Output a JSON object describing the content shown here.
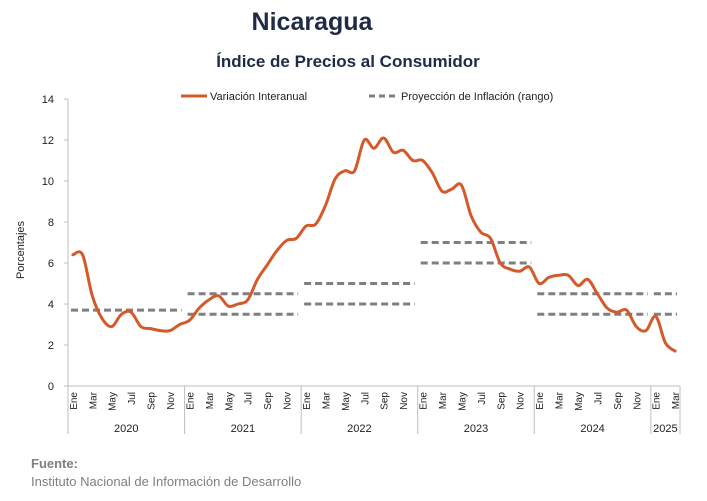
{
  "chart_data": {
    "type": "line",
    "title": "Nicaragua",
    "subtitle": "Índice de Precios al Consumidor",
    "ylabel": "Porcentajes",
    "ylim": [
      0,
      14
    ],
    "yticks": [
      0,
      2,
      4,
      6,
      8,
      10,
      12,
      14
    ],
    "grid": false,
    "legend_position": "top",
    "month_labels": [
      "Ene",
      "Mar",
      "May",
      "Jul",
      "Sep",
      "Nov"
    ],
    "month_labels_2025": [
      "Ene",
      "Mar"
    ],
    "years": [
      "2020",
      "2021",
      "2022",
      "2023",
      "2024",
      "2025"
    ],
    "series": [
      {
        "name": "Variación Interanual",
        "color": "#d35a2a",
        "x_start": "2020-01",
        "values": [
          6.4,
          6.4,
          4.4,
          3.3,
          2.9,
          3.5,
          3.6,
          2.9,
          2.8,
          2.7,
          2.7,
          3.0,
          3.2,
          3.8,
          4.2,
          4.4,
          3.9,
          4.0,
          4.2,
          5.2,
          5.9,
          6.6,
          7.1,
          7.2,
          7.8,
          7.9,
          8.8,
          10.1,
          10.5,
          10.5,
          12.0,
          11.6,
          12.1,
          11.4,
          11.5,
          11.0,
          11.0,
          10.4,
          9.5,
          9.6,
          9.8,
          8.3,
          7.5,
          7.2,
          6.0,
          5.7,
          5.6,
          5.8,
          5.0,
          5.3,
          5.4,
          5.4,
          4.9,
          5.2,
          4.5,
          3.8,
          3.6,
          3.7,
          2.9,
          2.7,
          3.4,
          2.1,
          1.7
        ]
      },
      {
        "name": "Proyección de Inflación (rango)",
        "color": "#7f7f7f",
        "dashed": true,
        "ranges": [
          {
            "year": "2020",
            "low": 3.7,
            "high": 3.7
          },
          {
            "year": "2021",
            "low": 3.5,
            "high": 4.5
          },
          {
            "year": "2022",
            "low": 4.0,
            "high": 5.0
          },
          {
            "year": "2023",
            "low": 6.0,
            "high": 7.0
          },
          {
            "year": "2024",
            "low": 3.5,
            "high": 4.5
          },
          {
            "year": "2025",
            "low": 3.5,
            "high": 4.5
          }
        ]
      }
    ]
  },
  "source": {
    "heading": "Fuente:",
    "text": "Instituto Nacional de Información de Desarrollo"
  }
}
